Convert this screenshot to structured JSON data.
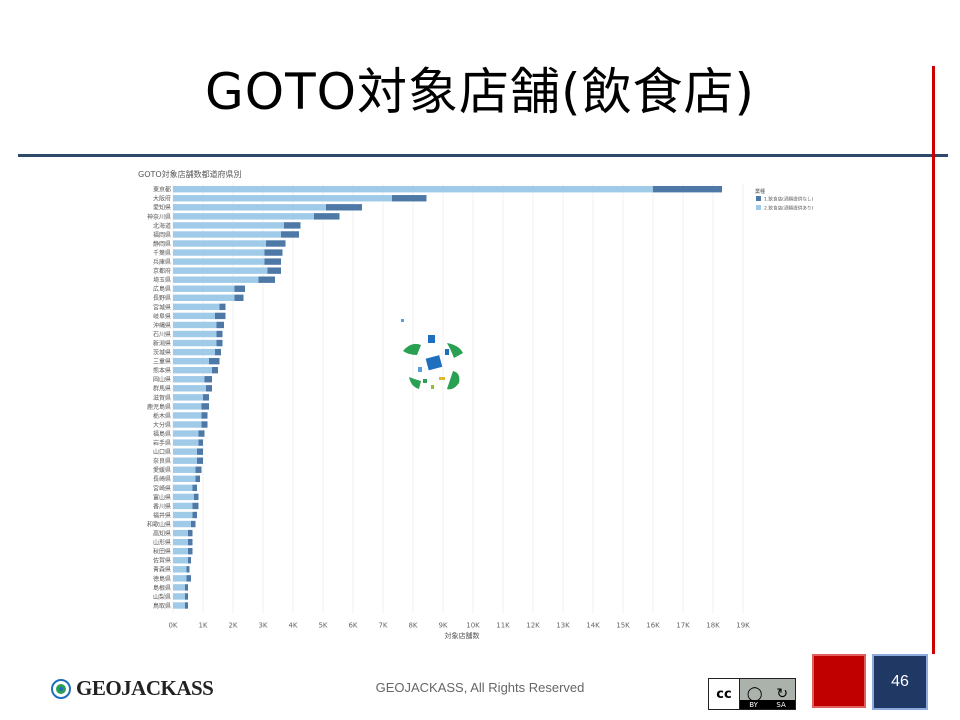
{
  "slide": {
    "title": "GOTO対象店舗(飲食店)",
    "footer": "GEOJACKASS, All Rights Reserved",
    "logo_text": "GEOJACKASS",
    "page_number": "46",
    "license": {
      "symbol": "cc",
      "by": "BY",
      "sa": "SA"
    }
  },
  "colors": {
    "rule_blue": "#2e4a6b",
    "rule_red": "#cc0000",
    "series_dark": "#4e79a7",
    "series_light": "#a0cbe8"
  },
  "chart_data": {
    "type": "bar",
    "orientation": "horizontal",
    "stacked": true,
    "title": "GOTO対象店舗数都道府県別",
    "xlabel": "対象店舗数",
    "ylabel": "",
    "xlim": [
      0,
      19000
    ],
    "x_ticks": [
      "0K",
      "1K",
      "2K",
      "3K",
      "4K",
      "5K",
      "6K",
      "7K",
      "8K",
      "9K",
      "10K",
      "11K",
      "12K",
      "13K",
      "14K",
      "15K",
      "16K",
      "17K",
      "18K",
      "19K"
    ],
    "grid": true,
    "legend_title": "業種",
    "legend_position": "top-right",
    "categories": [
      "東京都",
      "大阪府",
      "愛知県",
      "神奈川県",
      "北海道",
      "福岡県",
      "静岡県",
      "千葉県",
      "兵庫県",
      "京都府",
      "埼玉県",
      "広島県",
      "長野県",
      "宮城県",
      "岐阜県",
      "沖縄県",
      "石川県",
      "新潟県",
      "茨城県",
      "三重県",
      "熊本県",
      "岡山県",
      "群馬県",
      "滋賀県",
      "鹿児島県",
      "栃木県",
      "大分県",
      "福島県",
      "岩手県",
      "山口県",
      "奈良県",
      "愛媛県",
      "長崎県",
      "宮崎県",
      "富山県",
      "香川県",
      "福井県",
      "和歌山県",
      "高知県",
      "山形県",
      "秋田県",
      "佐賀県",
      "青森県",
      "徳島県",
      "島根県",
      "山梨県",
      "鳥取県"
    ],
    "series": [
      {
        "name": "2.飲食店(酒類提供あり)",
        "color": "#a0cbe8",
        "values": [
          16000,
          7300,
          5100,
          4700,
          3700,
          3600,
          3100,
          3050,
          3050,
          3150,
          2850,
          2050,
          2050,
          1550,
          1400,
          1450,
          1450,
          1450,
          1400,
          1200,
          1300,
          1050,
          1100,
          1000,
          950,
          950,
          950,
          850,
          850,
          800,
          800,
          750,
          750,
          650,
          700,
          650,
          650,
          600,
          500,
          500,
          500,
          500,
          450,
          450,
          400,
          400,
          400
        ]
      },
      {
        "name": "1.飲食店(酒類提供なし)",
        "color": "#4e79a7",
        "values": [
          2300,
          1150,
          1200,
          850,
          550,
          600,
          650,
          600,
          550,
          450,
          550,
          350,
          300,
          200,
          350,
          250,
          200,
          200,
          200,
          350,
          200,
          250,
          200,
          200,
          250,
          200,
          200,
          200,
          150,
          200,
          200,
          200,
          150,
          150,
          150,
          200,
          150,
          150,
          150,
          150,
          150,
          100,
          100,
          150,
          100,
          100,
          100
        ]
      }
    ]
  }
}
